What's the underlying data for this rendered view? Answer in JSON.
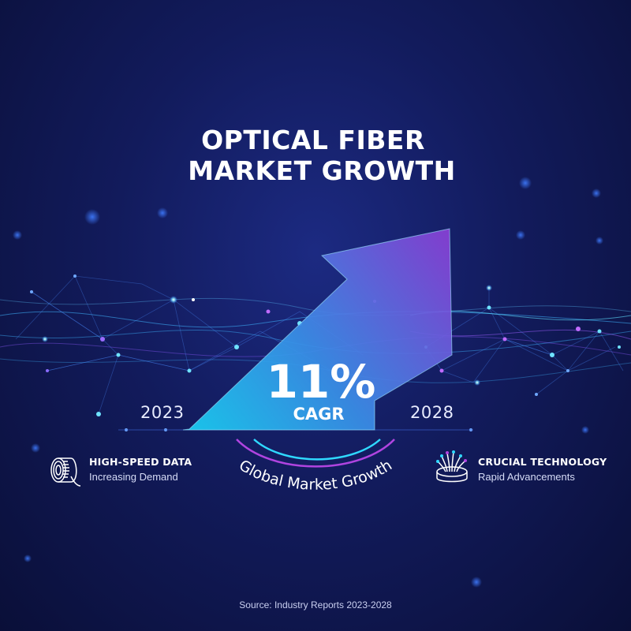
{
  "title": {
    "line1": "OPTICAL FIBER",
    "line2": "MARKET GROWTH"
  },
  "growth": {
    "value": "11%",
    "label": "CAGR",
    "start_year": "2023",
    "end_year": "2028"
  },
  "arc_text": "Global Market Growth",
  "features": [
    {
      "title": "HIGH-SPEED DATA",
      "subtitle": "Increasing Demand",
      "icon": "fiber-spool-icon"
    },
    {
      "title": "CRUCIAL TECHNOLOGY",
      "subtitle": "Rapid Advancements",
      "icon": "fiber-optic-bundle-icon"
    }
  ],
  "source": "Source: Industry Reports 2023-2028",
  "colors": {
    "background": "#121b5c",
    "arrow_start": "#19d3f5",
    "arrow_end": "#8b3fd6",
    "accent_cyan": "#2fd9ff",
    "accent_purple": "#b044e0"
  }
}
